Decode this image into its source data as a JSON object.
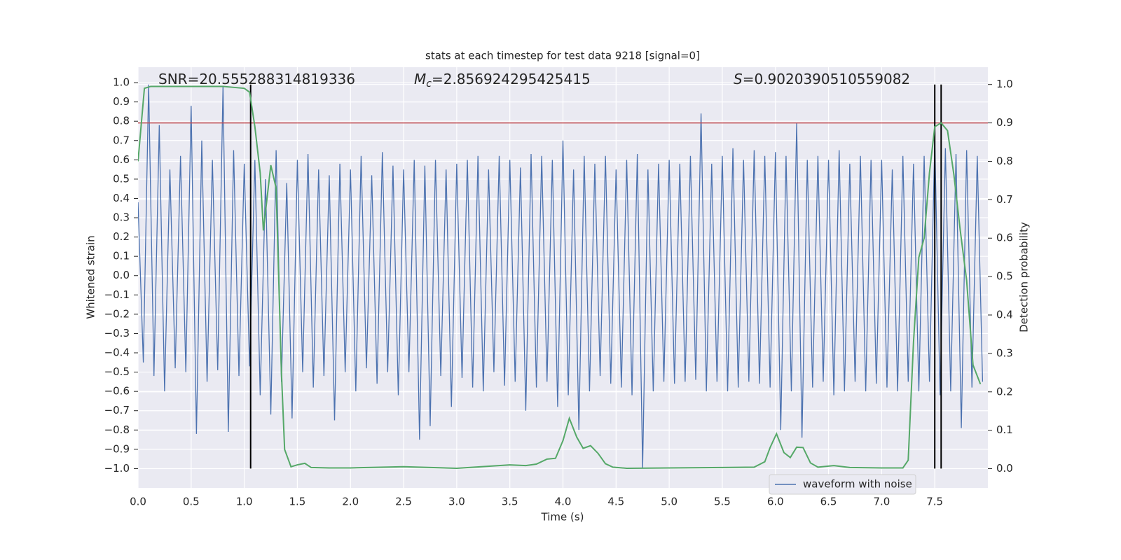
{
  "chart_data": {
    "type": "line",
    "title": "stats at each timestep for test data 9218 [signal=0]",
    "x_label": "Time (s)",
    "y_label": "Whitened strain",
    "y2_label": "Detection probability",
    "annotations": [
      {
        "symbol": "SNR",
        "text": "=20.555288314819336",
        "italic": false
      },
      {
        "symbol": "M",
        "subscript": "c",
        "text": "=2.856924295425415",
        "italic": true
      },
      {
        "symbol": "S",
        "text": "=0.9020390510559082",
        "italic": true
      }
    ],
    "xlim": [
      0,
      8
    ],
    "ylim": [
      -1.1,
      1.08
    ],
    "y2lim": [
      -0.05,
      1.045
    ],
    "xticks": [
      {
        "value": 0,
        "label": "0.0"
      },
      0.5,
      {
        "value": 1,
        "label": "1.0"
      },
      1.5,
      {
        "value": 2,
        "label": "2.0"
      },
      2.5,
      {
        "value": 3,
        "label": "3.0"
      },
      3.5,
      {
        "value": 4,
        "label": "4.0"
      },
      4.5,
      {
        "value": 5,
        "label": "5.0"
      },
      5.5,
      {
        "value": 6,
        "label": "6.0"
      },
      6.5,
      {
        "value": 7,
        "label": "7.0"
      },
      7.5
    ],
    "yticks": [
      {
        "value": -1,
        "label": "−1.0"
      },
      {
        "value": -0.9,
        "label": "−0.9"
      },
      {
        "value": -0.8,
        "label": "−0.8"
      },
      {
        "value": -0.7,
        "label": "−0.7"
      },
      {
        "value": -0.6,
        "label": "−0.6"
      },
      {
        "value": -0.5,
        "label": "−0.5"
      },
      {
        "value": -0.4,
        "label": "−0.4"
      },
      {
        "value": -0.3,
        "label": "−0.3"
      },
      {
        "value": -0.2,
        "label": "−0.2"
      },
      {
        "value": -0.1,
        "label": "−0.1"
      },
      {
        "value": 0,
        "label": "0.0"
      },
      0.1,
      0.2,
      0.3,
      0.4,
      0.5,
      0.6,
      0.7,
      0.8,
      0.9,
      {
        "value": 1,
        "label": "1.0"
      }
    ],
    "y2ticks": [
      {
        "value": 0,
        "label": "0.0"
      },
      0.1,
      0.2,
      0.3,
      0.4,
      0.5,
      0.6,
      0.7,
      0.8,
      0.9,
      {
        "value": 1,
        "label": "1.0"
      }
    ],
    "grid": true,
    "legend": "lower right",
    "series": [
      {
        "name": "waveform with noise",
        "color": "#4c72b0",
        "x": [
          0,
          0.05,
          0.1,
          0.15,
          0.2,
          0.25,
          0.3,
          0.35,
          0.4,
          0.45,
          0.5,
          0.55,
          0.6,
          0.65,
          0.7,
          0.75,
          0.8,
          0.85,
          0.9,
          0.95,
          1,
          1.05,
          1.1,
          1.15,
          1.2,
          1.25,
          1.3,
          1.35,
          1.4,
          1.45,
          1.5,
          1.55,
          1.6,
          1.65,
          1.7,
          1.75,
          1.8,
          1.85,
          1.9,
          1.95,
          2,
          2.05,
          2.1,
          2.15,
          2.2,
          2.25,
          2.3,
          2.35,
          2.4,
          2.45,
          2.5,
          2.55,
          2.6,
          2.65,
          2.7,
          2.75,
          2.8,
          2.85,
          2.9,
          2.95,
          3,
          3.05,
          3.1,
          3.15,
          3.2,
          3.25,
          3.3,
          3.35,
          3.4,
          3.45,
          3.5,
          3.55,
          3.6,
          3.65,
          3.7,
          3.75,
          3.8,
          3.85,
          3.9,
          3.95,
          4,
          4.05,
          4.1,
          4.15,
          4.2,
          4.25,
          4.3,
          4.35,
          4.4,
          4.45,
          4.5,
          4.55,
          4.6,
          4.65,
          4.7,
          4.75,
          4.8,
          4.85,
          4.9,
          4.95,
          5,
          5.05,
          5.1,
          5.15,
          5.2,
          5.25,
          5.3,
          5.35,
          5.4,
          5.45,
          5.5,
          5.55,
          5.6,
          5.65,
          5.7,
          5.75,
          5.8,
          5.85,
          5.9,
          5.95,
          6,
          6.05,
          6.1,
          6.15,
          6.2,
          6.25,
          6.3,
          6.35,
          6.4,
          6.45,
          6.5,
          6.55,
          6.6,
          6.65,
          6.7,
          6.75,
          6.8,
          6.85,
          6.9,
          6.95,
          7,
          7.05,
          7.1,
          7.15,
          7.2,
          7.25,
          7.3,
          7.35,
          7.4,
          7.45,
          7.5,
          7.55,
          7.6,
          7.65,
          7.7,
          7.75,
          7.8,
          7.85,
          7.9,
          7.95
        ],
        "values": [
          0.38,
          -0.45,
          0.99,
          -0.52,
          0.78,
          -0.6,
          0.55,
          -0.48,
          0.62,
          -0.5,
          0.88,
          -0.82,
          0.7,
          -0.55,
          0.6,
          -0.49,
          0.98,
          -0.81,
          0.65,
          -0.52,
          0.58,
          -0.47,
          0.6,
          -0.62,
          0.5,
          -0.72,
          0.65,
          -0.55,
          0.48,
          -0.74,
          0.6,
          -0.5,
          0.63,
          -0.58,
          0.55,
          -0.52,
          0.52,
          -0.75,
          0.58,
          -0.5,
          0.55,
          -0.6,
          0.62,
          -0.48,
          0.52,
          -0.56,
          0.64,
          -0.5,
          0.57,
          -0.62,
          0.55,
          -0.5,
          0.6,
          -0.85,
          0.57,
          -0.78,
          0.6,
          -0.52,
          0.55,
          -0.68,
          0.58,
          -0.53,
          0.6,
          -0.58,
          0.62,
          -0.6,
          0.55,
          -0.5,
          0.62,
          -0.57,
          0.6,
          -0.55,
          0.56,
          -0.7,
          0.63,
          -0.58,
          0.62,
          -0.55,
          0.6,
          -0.68,
          0.7,
          -0.62,
          0.55,
          -0.8,
          0.62,
          -0.6,
          0.58,
          -0.52,
          0.62,
          -0.56,
          0.55,
          -0.58,
          0.6,
          -0.62,
          0.63,
          -1.0,
          0.55,
          -0.6,
          0.58,
          -0.55,
          0.6,
          -0.56,
          0.58,
          -0.55,
          0.62,
          -0.54,
          0.84,
          -0.6,
          0.58,
          -0.55,
          0.62,
          -0.6,
          0.66,
          -0.58,
          0.6,
          -0.55,
          0.65,
          -0.56,
          0.62,
          -0.58,
          0.64,
          -0.8,
          0.62,
          -0.6,
          0.79,
          -0.84,
          0.6,
          -0.58,
          0.62,
          -0.55,
          0.6,
          -0.62,
          0.65,
          -0.6,
          0.58,
          -0.55,
          0.62,
          -0.6,
          0.6,
          -0.56,
          0.6,
          -0.58,
          0.55,
          -0.6,
          0.62,
          -0.55,
          0.58,
          -0.6,
          0.62,
          -0.55,
          0.7,
          -0.62,
          0.66,
          -0.6,
          0.63,
          -0.79,
          0.65,
          -0.58,
          0.62,
          -0.55
        ]
      }
    ],
    "probability": {
      "color": "#55a868",
      "axis": "y2",
      "x": [
        0,
        0.06,
        0.12,
        0.8,
        1,
        1.05,
        1.1,
        1.15,
        1.18,
        1.25,
        1.3,
        1.35,
        1.38,
        1.44,
        1.5,
        1.57,
        1.63,
        1.8,
        2,
        2.5,
        3,
        3.5,
        3.65,
        3.75,
        3.85,
        3.93,
        4,
        4.06,
        4.13,
        4.19,
        4.26,
        4.33,
        4.4,
        4.47,
        4.6,
        5,
        5.5,
        5.8,
        5.9,
        5.95,
        6.01,
        6.08,
        6.14,
        6.2,
        6.26,
        6.33,
        6.4,
        6.55,
        6.7,
        7,
        7.2,
        7.25,
        7.3,
        7.35,
        7.4,
        7.45,
        7.5,
        7.56,
        7.62,
        7.68,
        7.74,
        7.8,
        7.86,
        7.93
      ],
      "values": [
        0.8,
        0.99,
        0.995,
        0.995,
        0.99,
        0.98,
        0.89,
        0.77,
        0.62,
        0.79,
        0.73,
        0.25,
        0.05,
        0.005,
        0.01,
        0.014,
        0.003,
        0.002,
        0.002,
        0.005,
        0.001,
        0.01,
        0.008,
        0.012,
        0.025,
        0.027,
        0.073,
        0.131,
        0.082,
        0.053,
        0.06,
        0.04,
        0.013,
        0.004,
        0.001,
        0.002,
        0.003,
        0.004,
        0.018,
        0.055,
        0.091,
        0.042,
        0.029,
        0.056,
        0.055,
        0.015,
        0.004,
        0.008,
        0.003,
        0.002,
        0.002,
        0.022,
        0.33,
        0.55,
        0.6,
        0.77,
        0.89,
        0.9,
        0.88,
        0.765,
        0.62,
        0.49,
        0.27,
        0.22
      ]
    },
    "threshold": {
      "y2": 0.9,
      "color": "#c44e52"
    },
    "vlines": {
      "x": [
        1.06,
        7.5,
        7.56
      ],
      "color": "#000000"
    }
  }
}
